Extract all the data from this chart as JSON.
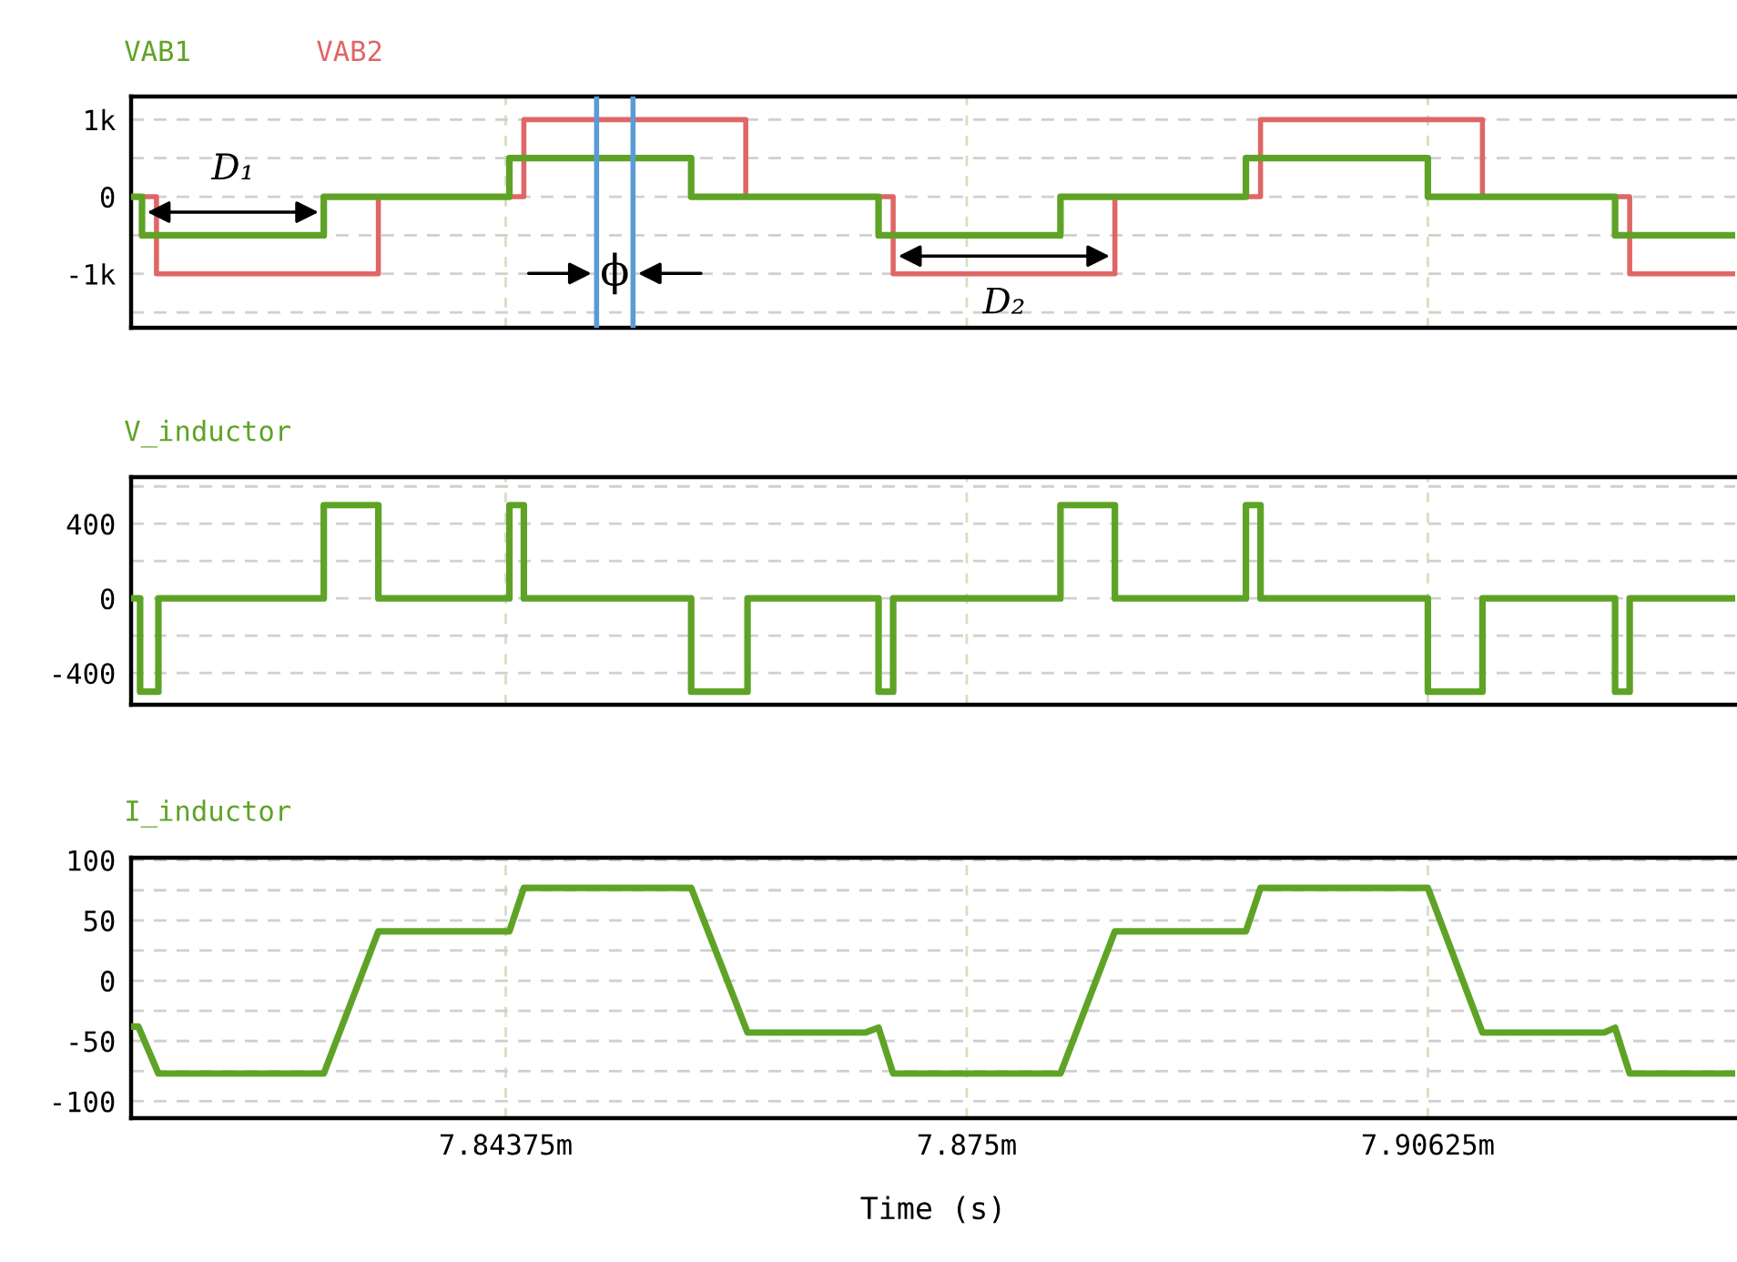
{
  "chart_data": [
    {
      "type": "step",
      "legend": "top left",
      "grid": true,
      "tick_labels": "y",
      "xlim": [
        7.81836,
        7.92708
      ],
      "xticks": [
        {
          "value": 7.84375,
          "label": null
        },
        {
          "value": 7.875,
          "label": null
        },
        {
          "value": 7.90625,
          "label": null
        }
      ],
      "ylim": [
        -1700,
        1300
      ],
      "yticks": [
        {
          "value": 1000,
          "label": "1k"
        },
        {
          "value": 500,
          "label": null
        },
        0,
        {
          "value": -500,
          "label": null
        },
        {
          "value": -1000,
          "label": "-1k"
        },
        {
          "value": -1500,
          "label": null
        }
      ],
      "series": [
        {
          "name": "VAB2",
          "color": "#e06666",
          "x": [
            7.81836,
            7.82008,
            7.83512,
            7.84498,
            7.86002,
            7.87001,
            7.88504,
            7.89491,
            7.90995,
            7.91993,
            7.92708
          ],
          "values": [
            0,
            -1000,
            0,
            1000,
            0,
            -1000,
            0,
            1000,
            0,
            -1000,
            -1000
          ]
        },
        {
          "name": "VAB1",
          "color": "#5ea326",
          "x": [
            7.81836,
            7.8191,
            7.83142,
            7.844,
            7.85632,
            7.86902,
            7.88135,
            7.89392,
            7.90625,
            7.91894,
            7.92708
          ],
          "values": [
            0,
            -500,
            0,
            500,
            0,
            -500,
            0,
            500,
            0,
            -500,
            -500
          ]
        }
      ],
      "ref_lines": [
        {
          "axis": "x",
          "value": 7.84991,
          "color": "#5b9bd5"
        },
        {
          "axis": "x",
          "value": 7.85238,
          "color": "#5b9bd5"
        }
      ],
      "annotations": [
        "D₁",
        "ϕ",
        "D₂"
      ]
    },
    {
      "type": "step",
      "legend": "top left",
      "grid": true,
      "tick_labels": "y",
      "xlim": [
        7.81836,
        7.92708
      ],
      "xticks": [
        {
          "value": 7.84375,
          "label": null
        },
        {
          "value": 7.875,
          "label": null
        },
        {
          "value": 7.90625,
          "label": null
        }
      ],
      "ylim": [
        -570,
        650
      ],
      "yticks": [
        {
          "value": 600,
          "label": null
        },
        400,
        {
          "value": 200,
          "label": null
        },
        0,
        {
          "value": -200,
          "label": null
        },
        -400
      ],
      "series": [
        {
          "name": "V_inductor",
          "color": "#5ea326",
          "x": [
            7.81836,
            7.81897,
            7.82021,
            7.83142,
            7.83512,
            7.844,
            7.84498,
            7.85632,
            7.86014,
            7.86902,
            7.87001,
            7.88135,
            7.88504,
            7.89392,
            7.89491,
            7.90625,
            7.90995,
            7.91894,
            7.91993,
            7.92708
          ],
          "values": [
            0,
            -500,
            0,
            500,
            0,
            500,
            0,
            -500,
            0,
            -500,
            0,
            500,
            0,
            500,
            0,
            -500,
            0,
            -500,
            0,
            0
          ]
        }
      ]
    },
    {
      "type": "line",
      "legend": "top left",
      "grid": true,
      "xlabel": "Time (s)",
      "xlim": [
        7.81836,
        7.92708
      ],
      "xticks": [
        {
          "value": 7.84375,
          "label": "7.84375m"
        },
        {
          "value": 7.875,
          "label": "7.875m"
        },
        {
          "value": 7.90625,
          "label": "7.90625m"
        }
      ],
      "ylim": [
        -114,
        102
      ],
      "yticks": [
        100,
        {
          "value": 75,
          "label": null
        },
        50,
        {
          "value": 25,
          "label": null
        },
        0,
        {
          "value": -25,
          "label": null
        },
        -50,
        {
          "value": -75,
          "label": null
        },
        -100
      ],
      "series": [
        {
          "name": "I_inductor",
          "color": "#5ea326",
          "x": [
            7.81836,
            7.81885,
            7.82021,
            7.83142,
            7.83512,
            7.844,
            7.84498,
            7.85632,
            7.86014,
            7.86816,
            7.86902,
            7.87001,
            7.88135,
            7.88504,
            7.89392,
            7.89491,
            7.90625,
            7.90995,
            7.9182,
            7.91894,
            7.91993,
            7.92708
          ],
          "values": [
            -38,
            -38,
            -77,
            -77,
            41,
            41,
            77,
            77,
            -43,
            -43,
            -39,
            -77,
            -77,
            41,
            41,
            77,
            77,
            -43,
            -43,
            -39,
            -77,
            -77
          ]
        }
      ]
    }
  ]
}
